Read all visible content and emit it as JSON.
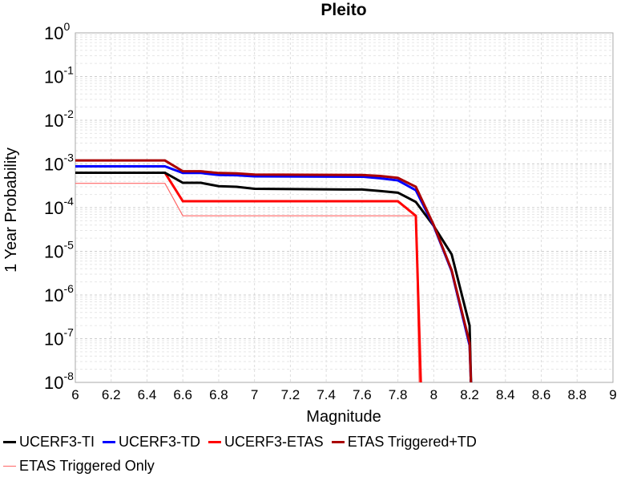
{
  "chart_data": {
    "type": "line",
    "title": "Pleito",
    "xlabel": "Magnitude",
    "ylabel": "1 Year Probability",
    "xlim": [
      6,
      9
    ],
    "ylim": [
      1e-08,
      1
    ],
    "y_scale": "log",
    "grid": true,
    "legend_placement": "bottom",
    "x_ticks": [
      "6",
      "6.2",
      "6.4",
      "6.6",
      "6.8",
      "7",
      "7.2",
      "7.4",
      "7.6",
      "7.8",
      "8",
      "8.2",
      "8.4",
      "8.6",
      "8.8",
      "9"
    ],
    "y_ticks": [
      {
        "base": "10",
        "exp": "0"
      },
      {
        "base": "10",
        "exp": "-1"
      },
      {
        "base": "10",
        "exp": "-2"
      },
      {
        "base": "10",
        "exp": "-3"
      },
      {
        "base": "10",
        "exp": "-4"
      },
      {
        "base": "10",
        "exp": "-5"
      },
      {
        "base": "10",
        "exp": "-6"
      },
      {
        "base": "10",
        "exp": "-7"
      },
      {
        "base": "10",
        "exp": "-8"
      }
    ],
    "series": [
      {
        "name": "UCERF3-TI",
        "color": "#000000",
        "width": 3,
        "points": [
          [
            6.0,
            0.00063
          ],
          [
            6.5,
            0.00063
          ],
          [
            6.6,
            0.00037
          ],
          [
            6.7,
            0.00037
          ],
          [
            6.8,
            0.00031
          ],
          [
            6.9,
            0.0003
          ],
          [
            7.0,
            0.00027
          ],
          [
            7.5,
            0.00026
          ],
          [
            7.6,
            0.00026
          ],
          [
            7.7,
            0.00024
          ],
          [
            7.8,
            0.00022
          ],
          [
            7.9,
            0.000135
          ],
          [
            8.0,
            3.8e-05
          ],
          [
            8.1,
            8.5e-06
          ],
          [
            8.2,
            2e-07
          ],
          [
            8.21,
            5e-09
          ]
        ]
      },
      {
        "name": "UCERF3-TD",
        "color": "#0000ff",
        "width": 3,
        "points": [
          [
            6.0,
            0.00088
          ],
          [
            6.5,
            0.00088
          ],
          [
            6.6,
            0.00062
          ],
          [
            6.7,
            0.00062
          ],
          [
            6.8,
            0.00056
          ],
          [
            6.9,
            0.00055
          ],
          [
            7.0,
            0.00052
          ],
          [
            7.6,
            0.00051
          ],
          [
            7.7,
            0.00047
          ],
          [
            7.8,
            0.00042
          ],
          [
            7.9,
            0.00025
          ],
          [
            8.0,
            3.8e-05
          ],
          [
            8.1,
            3.5e-06
          ],
          [
            8.2,
            7e-08
          ],
          [
            8.21,
            5e-09
          ]
        ]
      },
      {
        "name": "UCERF3-ETAS",
        "color": "#ff0000",
        "width": 3,
        "points": [
          [
            6.0,
            0.00063
          ],
          [
            6.5,
            0.00063
          ],
          [
            6.6,
            0.00014
          ],
          [
            7.8,
            0.00014
          ],
          [
            7.9,
            6.5e-05
          ],
          [
            7.93,
            5e-09
          ]
        ]
      },
      {
        "name": "ETAS Triggered+TD",
        "color": "#aa0000",
        "width": 3,
        "points": [
          [
            6.0,
            0.0012
          ],
          [
            6.5,
            0.0012
          ],
          [
            6.6,
            0.00068
          ],
          [
            6.7,
            0.00068
          ],
          [
            6.8,
            0.00062
          ],
          [
            6.9,
            0.00061
          ],
          [
            7.0,
            0.00057
          ],
          [
            7.6,
            0.00056
          ],
          [
            7.7,
            0.00053
          ],
          [
            7.8,
            0.00048
          ],
          [
            7.9,
            0.0003
          ],
          [
            8.0,
            4e-05
          ],
          [
            8.1,
            3.7e-06
          ],
          [
            8.2,
            8e-08
          ],
          [
            8.21,
            5e-09
          ]
        ]
      },
      {
        "name": "ETAS Triggered Only",
        "color": "#ff6666",
        "width": 1.2,
        "points": [
          [
            6.0,
            0.00036
          ],
          [
            6.5,
            0.00036
          ],
          [
            6.6,
            6.5e-05
          ],
          [
            7.8,
            6.5e-05
          ],
          [
            7.9,
            6.5e-05
          ],
          [
            7.92,
            5e-09
          ]
        ]
      }
    ]
  }
}
